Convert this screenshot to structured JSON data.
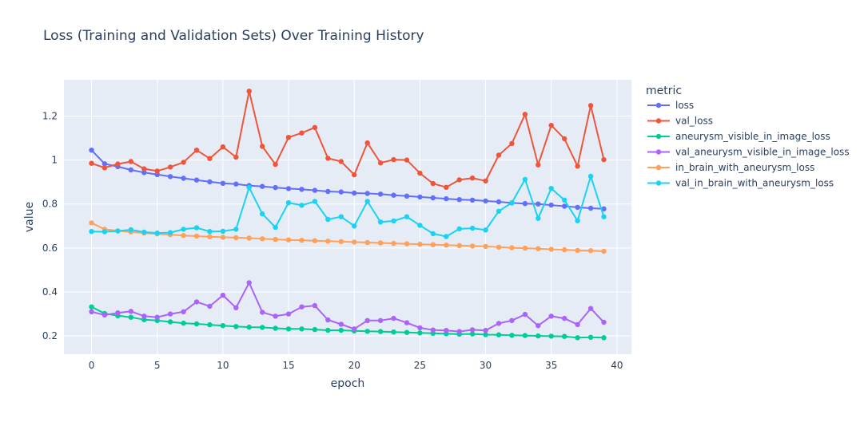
{
  "chart_data": {
    "type": "line",
    "title": "Loss (Training and Validation Sets) Over Training History",
    "xlabel": "epoch",
    "ylabel": "value",
    "xlim": [
      -2.1,
      41.1
    ],
    "ylim": [
      0.117,
      1.365
    ],
    "xticks": [
      0,
      5,
      10,
      15,
      20,
      25,
      30,
      35,
      40
    ],
    "yticks": [
      0.2,
      0.4,
      0.6,
      0.8,
      1,
      1.2
    ],
    "ytick_labels": [
      "0.2",
      "0.4",
      "0.6",
      "0.8",
      "1",
      "1.2"
    ],
    "grid": true,
    "legend": {
      "title": "metric",
      "position": "right"
    },
    "x": [
      0,
      1,
      2,
      3,
      4,
      5,
      6,
      7,
      8,
      9,
      10,
      11,
      12,
      13,
      14,
      15,
      16,
      17,
      18,
      19,
      20,
      21,
      22,
      23,
      24,
      25,
      26,
      27,
      28,
      29,
      30,
      31,
      32,
      33,
      34,
      35,
      36,
      37,
      38,
      39
    ],
    "series": [
      {
        "name": "loss",
        "color": "#636efa",
        "values": [
          1.045,
          0.983,
          0.97,
          0.955,
          0.943,
          0.934,
          0.925,
          0.917,
          0.909,
          0.901,
          0.894,
          0.891,
          0.884,
          0.88,
          0.875,
          0.87,
          0.867,
          0.862,
          0.857,
          0.855,
          0.85,
          0.848,
          0.845,
          0.84,
          0.836,
          0.832,
          0.828,
          0.824,
          0.82,
          0.818,
          0.814,
          0.81,
          0.805,
          0.802,
          0.8,
          0.795,
          0.79,
          0.785,
          0.781,
          0.778
        ]
      },
      {
        "name": "val_loss",
        "color": "#ef553b",
        "values": [
          0.985,
          0.965,
          0.982,
          0.993,
          0.96,
          0.95,
          0.968,
          0.99,
          1.045,
          1.007,
          1.06,
          1.013,
          1.313,
          1.062,
          0.98,
          1.103,
          1.123,
          1.148,
          1.008,
          0.993,
          0.933,
          1.078,
          0.987,
          1.002,
          1.0,
          0.94,
          0.893,
          0.876,
          0.91,
          0.918,
          0.905,
          1.022,
          1.075,
          1.208,
          0.978,
          1.158,
          1.097,
          0.972,
          1.248,
          1.002
        ]
      },
      {
        "name": "aneurysm_visible_in_image_loss",
        "color": "#00cc96",
        "values": [
          0.332,
          0.302,
          0.292,
          0.285,
          0.274,
          0.27,
          0.264,
          0.258,
          0.255,
          0.251,
          0.247,
          0.243,
          0.24,
          0.239,
          0.235,
          0.232,
          0.232,
          0.229,
          0.226,
          0.226,
          0.223,
          0.221,
          0.22,
          0.218,
          0.216,
          0.214,
          0.212,
          0.21,
          0.208,
          0.209,
          0.206,
          0.205,
          0.203,
          0.202,
          0.2,
          0.199,
          0.198,
          0.192,
          0.194,
          0.192
        ]
      },
      {
        "name": "val_aneurysm_visible_in_image_loss",
        "color": "#ab63fa",
        "values": [
          0.31,
          0.295,
          0.305,
          0.312,
          0.29,
          0.285,
          0.3,
          0.31,
          0.355,
          0.335,
          0.385,
          0.328,
          0.442,
          0.308,
          0.29,
          0.3,
          0.332,
          0.338,
          0.273,
          0.253,
          0.232,
          0.27,
          0.27,
          0.28,
          0.26,
          0.237,
          0.227,
          0.225,
          0.22,
          0.228,
          0.225,
          0.257,
          0.27,
          0.298,
          0.247,
          0.29,
          0.28,
          0.252,
          0.325,
          0.262
        ]
      },
      {
        "name": "in_brain_with_aneurysm_loss",
        "color": "#ffa15a",
        "values": [
          0.714,
          0.685,
          0.678,
          0.673,
          0.668,
          0.664,
          0.661,
          0.657,
          0.654,
          0.651,
          0.649,
          0.647,
          0.645,
          0.642,
          0.639,
          0.637,
          0.635,
          0.633,
          0.631,
          0.629,
          0.627,
          0.625,
          0.623,
          0.621,
          0.619,
          0.617,
          0.615,
          0.613,
          0.611,
          0.609,
          0.607,
          0.604,
          0.601,
          0.599,
          0.597,
          0.594,
          0.592,
          0.589,
          0.588,
          0.585
        ]
      },
      {
        "name": "val_in_brain_with_aneurysm_loss",
        "color": "#19d3f3",
        "values": [
          0.675,
          0.674,
          0.677,
          0.683,
          0.672,
          0.668,
          0.67,
          0.685,
          0.692,
          0.675,
          0.676,
          0.685,
          0.875,
          0.755,
          0.694,
          0.806,
          0.794,
          0.812,
          0.73,
          0.742,
          0.7,
          0.812,
          0.718,
          0.723,
          0.742,
          0.703,
          0.665,
          0.652,
          0.687,
          0.69,
          0.682,
          0.767,
          0.806,
          0.912,
          0.735,
          0.871,
          0.818,
          0.724,
          0.926,
          0.742
        ]
      }
    ]
  }
}
